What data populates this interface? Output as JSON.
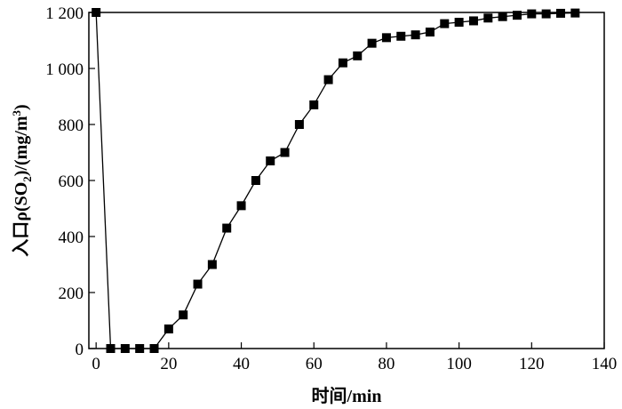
{
  "chart_data": {
    "type": "line",
    "xlabel": "时间/min",
    "ylabel_parts": {
      "prefix": "入口ρ(SO",
      "sub": "2",
      "middle": ")/(mg/m",
      "sup": "3",
      "suffix": ")"
    },
    "xlim": [
      -2,
      140
    ],
    "ylim": [
      0,
      1200
    ],
    "xticks": [
      0,
      20,
      40,
      60,
      80,
      100,
      120,
      140
    ],
    "xtick_labels": [
      "0",
      "20",
      "40",
      "60",
      "80",
      "100",
      "120",
      "140"
    ],
    "yticks": [
      0,
      200,
      400,
      600,
      800,
      1000,
      1200
    ],
    "ytick_labels": [
      "0",
      "200",
      "400",
      "600",
      "800",
      "1 000",
      "1 200"
    ],
    "marker": "square",
    "grid": false,
    "series": [
      {
        "color": "#000000",
        "x": [
          0,
          4,
          8,
          12,
          16,
          20,
          24,
          28,
          32,
          36,
          40,
          44,
          48,
          52,
          56,
          60,
          64,
          68,
          72,
          76,
          80,
          84,
          88,
          92,
          96,
          100,
          104,
          108,
          112,
          116,
          120,
          124,
          128,
          132
        ],
        "y": [
          1200,
          0,
          0,
          0,
          0,
          70,
          120,
          230,
          300,
          430,
          510,
          600,
          670,
          700,
          800,
          870,
          960,
          1020,
          1045,
          1090,
          1110,
          1115,
          1120,
          1130,
          1160,
          1165,
          1170,
          1180,
          1185,
          1190,
          1195,
          1195,
          1197,
          1198
        ]
      }
    ]
  }
}
